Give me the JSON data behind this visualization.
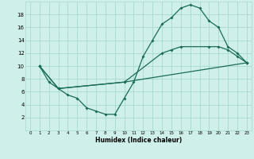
{
  "title": "",
  "xlabel": "Humidex (Indice chaleur)",
  "bg_color": "#cff0ea",
  "grid_color": "#a8d8d0",
  "line_color": "#1a6b5a",
  "xlim": [
    -0.5,
    23.5
  ],
  "ylim": [
    0,
    20
  ],
  "xticks": [
    0,
    1,
    2,
    3,
    4,
    5,
    6,
    7,
    8,
    9,
    10,
    11,
    12,
    13,
    14,
    15,
    16,
    17,
    18,
    19,
    20,
    21,
    22,
    23
  ],
  "yticks": [
    2,
    4,
    6,
    8,
    10,
    12,
    14,
    16,
    18
  ],
  "line1_x": [
    1,
    2,
    3,
    4,
    5,
    6,
    7,
    8,
    9,
    10,
    11,
    12,
    13,
    14,
    15,
    16,
    17,
    18,
    19,
    20,
    21,
    22,
    23
  ],
  "line1_y": [
    10,
    7.5,
    6.5,
    5.5,
    5,
    3.5,
    3,
    2.5,
    2.5,
    5,
    7.5,
    11.5,
    14,
    16.5,
    17.5,
    19,
    19.5,
    19,
    17,
    16,
    13,
    12,
    10.5
  ],
  "line2_x": [
    1,
    3,
    10,
    14,
    15,
    16,
    19,
    20,
    21,
    22,
    23
  ],
  "line2_y": [
    10,
    6.5,
    7.5,
    12,
    12.5,
    13,
    13,
    13,
    12.5,
    11.5,
    10.5
  ],
  "line3_x": [
    1,
    3,
    10,
    23
  ],
  "line3_y": [
    10,
    6.5,
    7.5,
    10.5
  ]
}
